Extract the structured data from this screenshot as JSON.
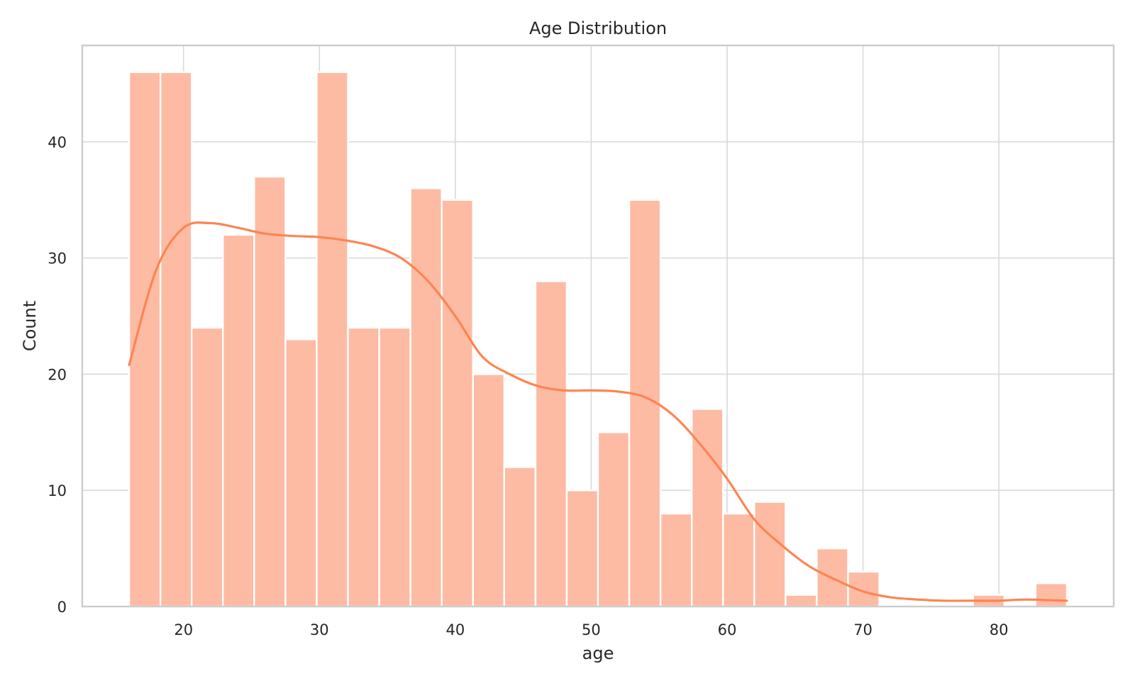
{
  "chart_data": {
    "type": "bar",
    "title": "Age Distribution",
    "xlabel": "age",
    "ylabel": "Count",
    "xlim": [
      12.55,
      88.45
    ],
    "ylim": [
      0,
      48.3
    ],
    "x_ticks": [
      20,
      30,
      40,
      50,
      60,
      70,
      80
    ],
    "y_ticks": [
      0,
      10,
      20,
      30,
      40
    ],
    "grid": true,
    "bin_edges": [
      16.0,
      18.3,
      20.6,
      22.9,
      25.2,
      27.5,
      29.8,
      32.1,
      34.4,
      36.7,
      39.0,
      41.3,
      43.6,
      45.9,
      48.2,
      50.5,
      52.8,
      55.1,
      57.4,
      59.7,
      62.0,
      64.3,
      66.6,
      68.9,
      71.2,
      73.5,
      75.8,
      78.1,
      80.4,
      82.7,
      85.0
    ],
    "counts": [
      46,
      46,
      24,
      32,
      37,
      23,
      46,
      24,
      24,
      36,
      35,
      20,
      12,
      28,
      10,
      15,
      35,
      8,
      17,
      8,
      9,
      1,
      5,
      3,
      0,
      0,
      0,
      1,
      0,
      2
    ],
    "kde": {
      "x": [
        16,
        18,
        20,
        22,
        24,
        26,
        28,
        30,
        32,
        34,
        36,
        38,
        40,
        42,
        44,
        46,
        48,
        50,
        52,
        54,
        56,
        58,
        60,
        62,
        64,
        66,
        68,
        70,
        72,
        74,
        76,
        78,
        80,
        82,
        85
      ],
      "y": [
        20.8,
        29,
        32.6,
        33,
        32.6,
        32.1,
        31.9,
        31.8,
        31.5,
        31,
        30,
        28,
        25,
        21.5,
        20,
        19,
        18.6,
        18.6,
        18.5,
        18,
        16.5,
        14,
        11,
        7.5,
        5.3,
        3.5,
        2.3,
        1.3,
        0.8,
        0.6,
        0.5,
        0.5,
        0.5,
        0.6,
        0.5
      ]
    },
    "colors": {
      "bar": "#fdbba4",
      "kde": "#fc8552"
    }
  }
}
